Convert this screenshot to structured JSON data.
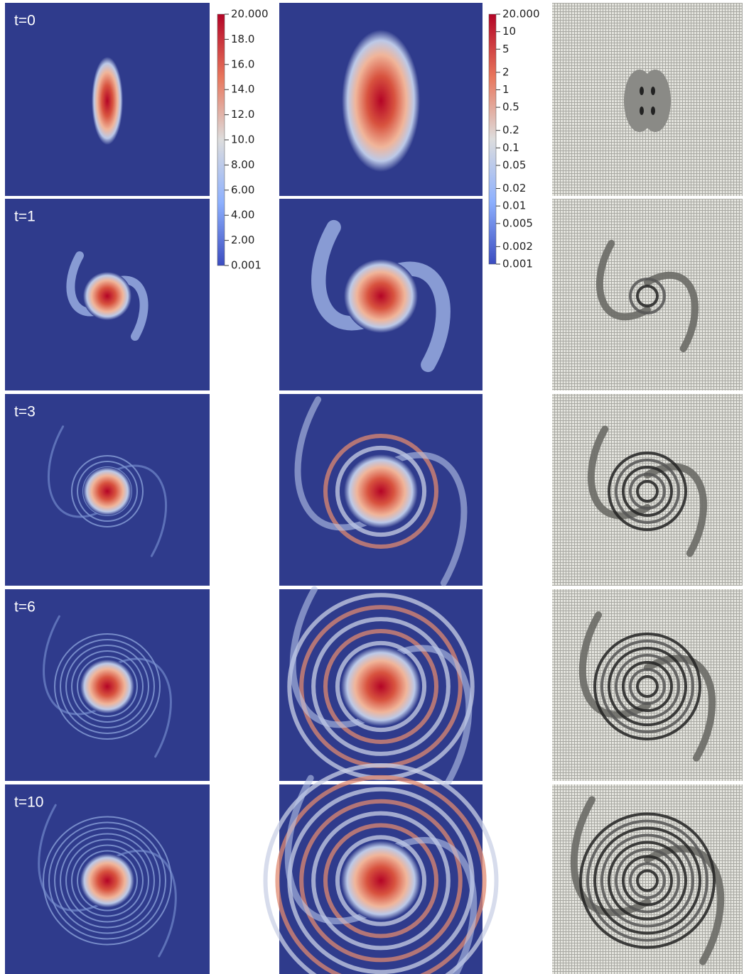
{
  "panels": [
    {
      "label": "t=0"
    },
    {
      "label": "t=1"
    },
    {
      "label": "t=3"
    },
    {
      "label": "t=6"
    },
    {
      "label": "t=10"
    }
  ],
  "colorbars": [
    {
      "scale": "linear",
      "lim": [
        0.001,
        20
      ],
      "ticks": [
        {
          "value": 20,
          "label": "20.000"
        },
        {
          "value": 18,
          "label": "18.0"
        },
        {
          "value": 16,
          "label": "16.0"
        },
        {
          "value": 14,
          "label": "14.0"
        },
        {
          "value": 12,
          "label": "12.0"
        },
        {
          "value": 10,
          "label": "10.0"
        },
        {
          "value": 8,
          "label": "8.00"
        },
        {
          "value": 6,
          "label": "6.00"
        },
        {
          "value": 4,
          "label": "4.00"
        },
        {
          "value": 2,
          "label": "2.00"
        },
        0.001
      ]
    },
    {
      "scale": "log",
      "lim": [
        0.001,
        20
      ],
      "ticks": [
        {
          "value": 20,
          "label": "20.000"
        },
        10,
        5,
        2,
        1,
        0.5,
        0.2,
        0.1,
        0.05,
        0.02,
        0.01,
        0.005,
        0.002,
        0.001
      ]
    }
  ]
}
